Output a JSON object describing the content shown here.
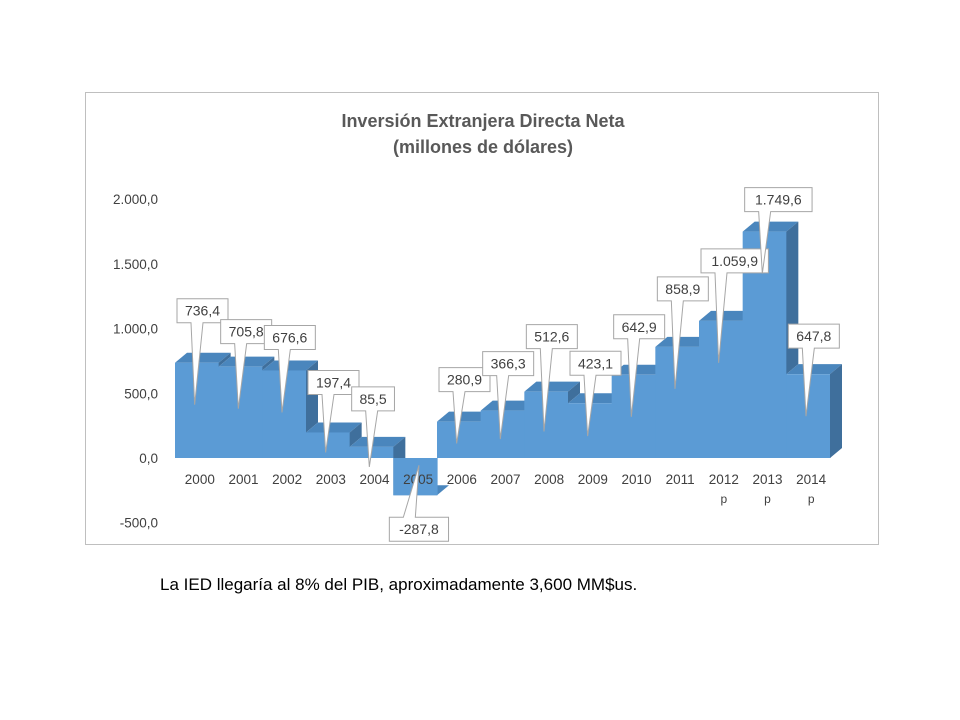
{
  "chart_data": {
    "type": "bar",
    "title": "Inversión Extranjera Directa Neta",
    "subtitle": "(millones de dólares)",
    "categories": [
      "2000",
      "2001",
      "2002",
      "2003",
      "2004",
      "2005",
      "2006",
      "2007",
      "2008",
      "2009",
      "2010",
      "2011",
      "2012",
      "2013",
      "2014"
    ],
    "category_notes": [
      "",
      "",
      "",
      "",
      "",
      "",
      "",
      "",
      "",
      "",
      "",
      "",
      "p",
      "p",
      "p"
    ],
    "values": [
      736.4,
      705.8,
      676.6,
      197.4,
      85.5,
      -287.8,
      280.9,
      366.3,
      512.6,
      423.1,
      642.9,
      858.9,
      1059.9,
      1749.6,
      647.8
    ],
    "value_labels": [
      "736,4",
      "705,8",
      "676,6",
      "197,4",
      "85,5",
      "-287,8",
      "280,9",
      "366,3",
      "512,6",
      "423,1",
      "642,9",
      "858,9",
      "1.059,9",
      "1.749,6",
      "647,8"
    ],
    "ylim": [
      -500,
      2000
    ],
    "yticks": [
      -500,
      0,
      500,
      1000,
      1500,
      2000
    ],
    "ytick_labels": [
      "-500,0",
      "0,0",
      "500,0",
      "1.000,0",
      "1.500,0",
      "2.000,0"
    ],
    "xlabel": "",
    "ylabel": "",
    "grid": false,
    "legend": "none",
    "colors": {
      "front": "#5b9bd5",
      "top": "#4a86bd",
      "side": "#3f6f9c",
      "label_border": "#a6a6a6"
    }
  },
  "caption": "La IED llegaría al 8% del PIB, aproximadamente 3,600 MM$us."
}
